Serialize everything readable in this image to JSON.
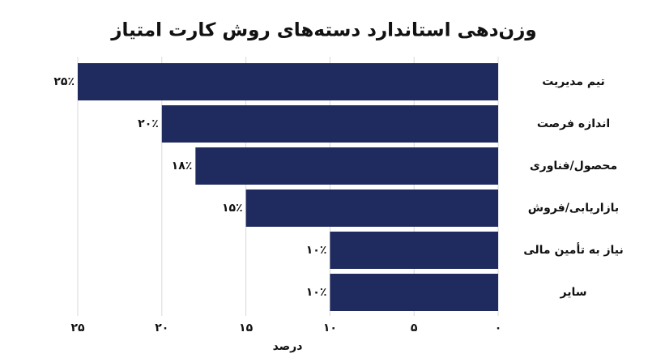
{
  "chart_data": {
    "type": "hbar",
    "title": "وزن‌دهی استاندارد دسته‌های روش کارت امتیاز",
    "categories": [
      "تیم مدیریت",
      "اندازه فرصت",
      "محصول/فناوری",
      "بازاریابی/فروش",
      "نیاز به تأمین مالی",
      "سایر"
    ],
    "values": [
      25,
      20,
      18,
      15,
      10,
      10
    ],
    "value_labels": [
      "۲۵٪",
      "۲۰٪",
      "۱۸٪",
      "۱۵٪",
      "۱۰٪",
      "۱۰٪"
    ],
    "color": "#1f2a5e",
    "xlim": [
      25,
      0
    ],
    "xticks": [
      {
        "value": 25,
        "label": "۲۵"
      },
      {
        "value": 20,
        "label": "۲۰"
      },
      {
        "value": 15,
        "label": "۱۵"
      },
      {
        "value": 10,
        "label": "۱۰"
      },
      {
        "value": 5,
        "label": "۵"
      },
      {
        "value": 0,
        "label": "۰"
      }
    ],
    "xlabel": "درصد",
    "grid": true
  }
}
